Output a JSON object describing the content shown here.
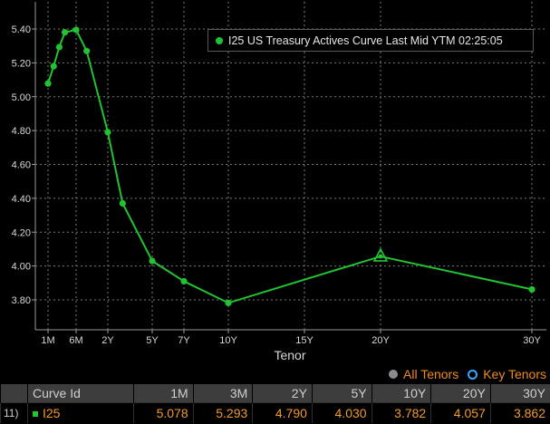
{
  "legend": {
    "label": "I25 US Treasury Actives Curve Last Mid YTM 02:25:05"
  },
  "toggles": {
    "all_tenors": "All Tenors",
    "key_tenors": "Key Tenors"
  },
  "table": {
    "header": {
      "idx": "",
      "name": "Curve Id",
      "cols": [
        "1M",
        "3M",
        "2Y",
        "5Y",
        "10Y",
        "20Y",
        "30Y"
      ]
    },
    "rows": [
      {
        "idx": "11)",
        "name": "I25",
        "values": [
          "5.078",
          "5.293",
          "4.790",
          "4.030",
          "3.782",
          "4.057",
          "3.862"
        ]
      }
    ]
  },
  "colors": {
    "series": "#22c232",
    "grid": "#7a7a7a",
    "axis_text": "#d9d9d9",
    "values": "#f29a2e"
  },
  "chart_data": {
    "type": "line",
    "xlabel": "Tenor",
    "ylabel": "",
    "x_ticks": [
      {
        "label": "1M",
        "t": 0.0833
      },
      {
        "label": "6M",
        "t": 0.5
      },
      {
        "label": "2Y",
        "t": 2
      },
      {
        "label": "5Y",
        "t": 5
      },
      {
        "label": "7Y",
        "t": 7
      },
      {
        "label": "10Y",
        "t": 10
      },
      {
        "label": "15Y",
        "t": 15
      },
      {
        "label": "20Y",
        "t": 20
      },
      {
        "label": "30Y",
        "t": 30
      }
    ],
    "y_ticks": [
      "3.80",
      "4.00",
      "4.20",
      "4.40",
      "4.60",
      "4.80",
      "5.00",
      "5.20",
      "5.40"
    ],
    "ylim": [
      3.68,
      5.58
    ],
    "grid": true,
    "legend_position": "top-right",
    "series": [
      {
        "name": "I25 US Treasury Actives Curve Last Mid YTM 02:25:05",
        "points": [
          {
            "t": 0.0833,
            "y": 5.078
          },
          {
            "t": 0.1667,
            "y": 5.18
          },
          {
            "t": 0.25,
            "y": 5.293
          },
          {
            "t": 0.3333,
            "y": 5.38
          },
          {
            "t": 0.5,
            "y": 5.395
          },
          {
            "t": 1,
            "y": 5.27
          },
          {
            "t": 2,
            "y": 4.79
          },
          {
            "t": 3,
            "y": 4.37
          },
          {
            "t": 5,
            "y": 4.03
          },
          {
            "t": 7,
            "y": 3.91
          },
          {
            "t": 10,
            "y": 3.782
          },
          {
            "t": 20,
            "y": 4.057,
            "marker": "triangle"
          },
          {
            "t": 30,
            "y": 3.862
          }
        ]
      }
    ]
  }
}
